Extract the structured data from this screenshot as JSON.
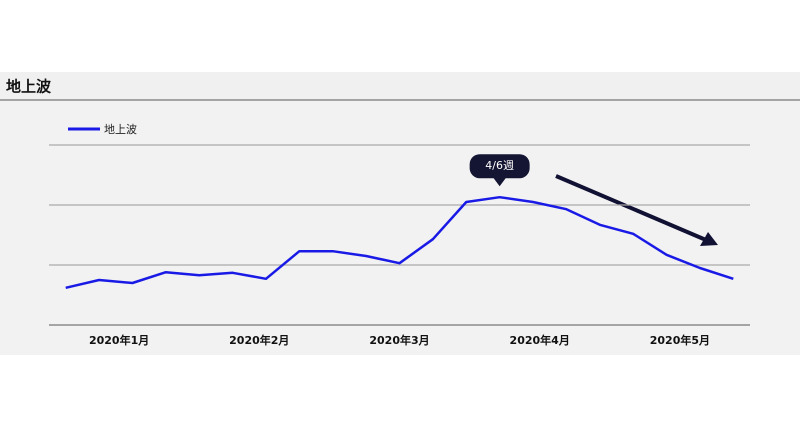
{
  "chart_data": {
    "type": "line",
    "title": "地上波",
    "x": [
      0,
      1,
      2,
      3,
      4,
      5,
      6,
      7,
      8,
      9,
      10,
      11,
      12,
      13,
      14,
      15,
      16,
      17,
      18,
      19,
      20
    ],
    "series": [
      {
        "name": "地上波",
        "color": "#1a1ae6",
        "values": [
          0.62,
          0.75,
          0.7,
          0.88,
          0.83,
          0.87,
          0.77,
          1.23,
          1.23,
          1.15,
          1.03,
          1.43,
          2.05,
          2.13,
          2.05,
          1.93,
          1.67,
          1.52,
          1.17,
          0.95,
          0.77
        ]
      }
    ],
    "xlim": [
      -0.5,
      20.5
    ],
    "xticks": [
      {
        "value": 1.6,
        "label": "2020年1月"
      },
      {
        "value": 5.8,
        "label": "2020年2月"
      },
      {
        "value": 10.0,
        "label": "2020年3月"
      },
      {
        "value": 14.2,
        "label": "2020年4月"
      },
      {
        "value": 18.4,
        "label": "2020年5月"
      }
    ],
    "ylim": [
      0,
      3
    ],
    "yticks": [
      0,
      1,
      2,
      3
    ],
    "ytick_labels": false,
    "grid": true,
    "annotations": [
      {
        "text": "4/6週",
        "x": 13
      }
    ]
  }
}
